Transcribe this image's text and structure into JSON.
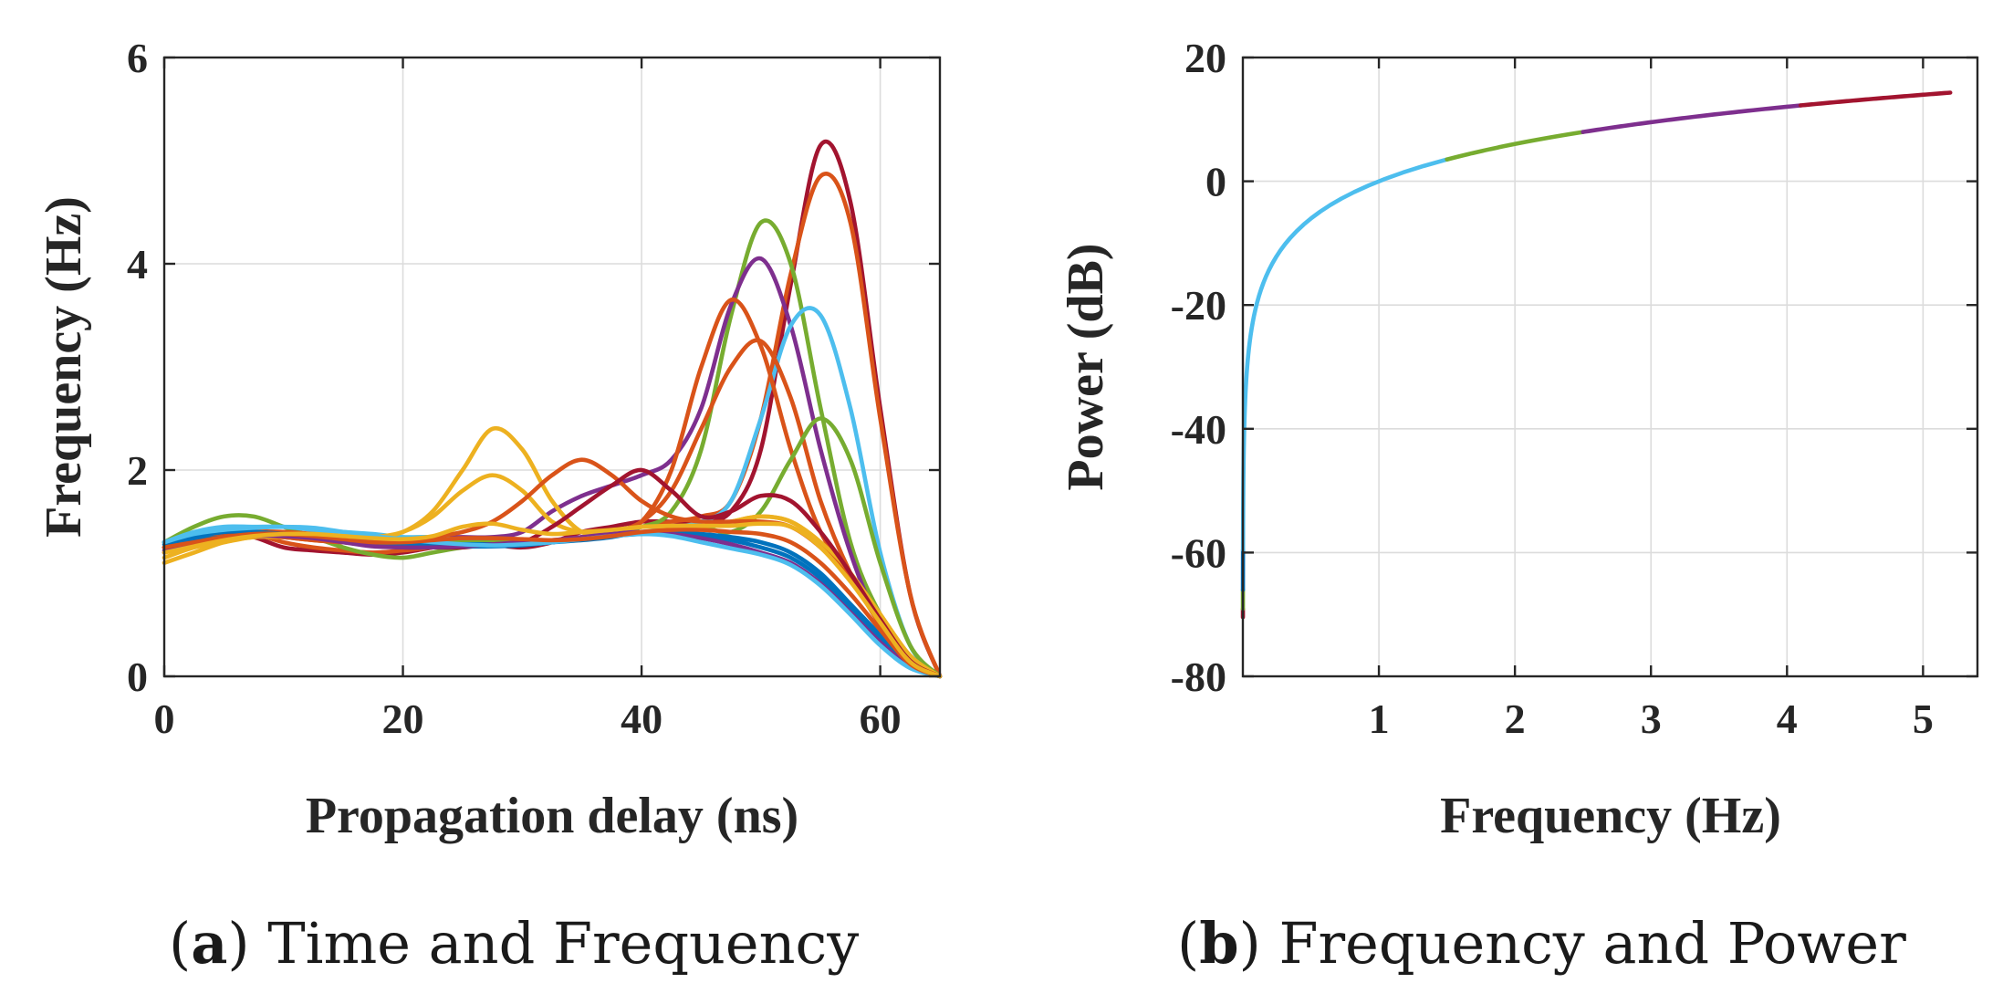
{
  "chart_data": [
    {
      "type": "line",
      "panel": "a",
      "caption_letter": "a",
      "caption_text": " Time and Frequency",
      "xlabel": "Propagation delay (ns)",
      "ylabel": "Frequency (Hz)",
      "xlim": [
        0,
        65
      ],
      "ylim": [
        0,
        6
      ],
      "xticks": [
        0,
        20,
        40,
        60
      ],
      "yticks": [
        0,
        2,
        4,
        6
      ],
      "xtick_labels": [
        "0",
        "20",
        "40",
        "60"
      ],
      "ytick_labels": [
        "0",
        "2",
        "4",
        "6"
      ],
      "grid": true,
      "x": [
        0,
        2.5,
        5,
        7.5,
        10,
        12.5,
        15,
        17.5,
        20,
        22.5,
        25,
        27.5,
        30,
        32.5,
        35,
        37.5,
        40,
        42.5,
        45,
        47.5,
        50,
        52.5,
        55,
        57.5,
        60,
        62.5,
        65
      ],
      "series": [
        {
          "name": "s1",
          "color": "#a2142f",
          "values": [
            1.2,
            1.3,
            1.4,
            1.35,
            1.25,
            1.22,
            1.2,
            1.18,
            1.2,
            1.25,
            1.3,
            1.28,
            1.25,
            1.3,
            1.4,
            1.45,
            1.5,
            1.5,
            1.5,
            1.6,
            2.2,
            3.8,
            5.15,
            4.6,
            2.6,
            0.8,
            0.0
          ]
        },
        {
          "name": "s2",
          "color": "#d95319",
          "values": [
            1.25,
            1.35,
            1.4,
            1.38,
            1.3,
            1.25,
            1.22,
            1.2,
            1.22,
            1.25,
            1.28,
            1.3,
            1.28,
            1.3,
            1.35,
            1.4,
            1.45,
            1.5,
            1.55,
            1.7,
            2.5,
            3.9,
            4.85,
            4.4,
            2.5,
            0.8,
            0.0
          ]
        },
        {
          "name": "s3",
          "color": "#77ac30",
          "values": [
            1.3,
            1.45,
            1.55,
            1.55,
            1.45,
            1.35,
            1.25,
            1.18,
            1.15,
            1.2,
            1.25,
            1.28,
            1.28,
            1.3,
            1.35,
            1.4,
            1.45,
            1.6,
            2.2,
            3.5,
            4.4,
            4.0,
            2.6,
            1.3,
            0.6,
            0.2,
            0.0
          ]
        },
        {
          "name": "s4",
          "color": "#7e2f8e",
          "values": [
            1.2,
            1.3,
            1.35,
            1.4,
            1.38,
            1.35,
            1.3,
            1.28,
            1.3,
            1.35,
            1.35,
            1.35,
            1.4,
            1.6,
            1.75,
            1.85,
            1.95,
            2.1,
            2.6,
            3.6,
            4.05,
            3.4,
            2.2,
            1.2,
            0.5,
            0.15,
            0.0
          ]
        },
        {
          "name": "s5",
          "color": "#4dbeee",
          "values": [
            1.3,
            1.4,
            1.45,
            1.45,
            1.45,
            1.42,
            1.4,
            1.38,
            1.35,
            1.35,
            1.32,
            1.3,
            1.28,
            1.3,
            1.35,
            1.4,
            1.45,
            1.45,
            1.5,
            1.7,
            2.5,
            3.4,
            3.5,
            2.6,
            1.2,
            0.3,
            0.0
          ]
        },
        {
          "name": "s6",
          "color": "#d95319",
          "values": [
            1.25,
            1.3,
            1.35,
            1.4,
            1.4,
            1.38,
            1.35,
            1.32,
            1.3,
            1.3,
            1.3,
            1.3,
            1.3,
            1.3,
            1.35,
            1.4,
            1.5,
            2.0,
            3.0,
            3.65,
            3.2,
            2.2,
            1.4,
            1.0,
            0.6,
            0.2,
            0.0
          ]
        },
        {
          "name": "s7",
          "color": "#d95319",
          "values": [
            1.25,
            1.3,
            1.35,
            1.38,
            1.35,
            1.32,
            1.3,
            1.28,
            1.28,
            1.3,
            1.3,
            1.3,
            1.3,
            1.32,
            1.35,
            1.4,
            1.5,
            1.8,
            2.4,
            3.0,
            3.25,
            2.7,
            1.7,
            1.0,
            0.5,
            0.15,
            0.0
          ]
        },
        {
          "name": "s8",
          "color": "#77ac30",
          "values": [
            1.3,
            1.35,
            1.4,
            1.4,
            1.38,
            1.35,
            1.32,
            1.3,
            1.3,
            1.3,
            1.3,
            1.3,
            1.3,
            1.3,
            1.35,
            1.4,
            1.45,
            1.45,
            1.45,
            1.4,
            1.6,
            2.1,
            2.5,
            2.1,
            1.1,
            0.3,
            0.0
          ]
        },
        {
          "name": "s9",
          "color": "#edb120",
          "values": [
            1.1,
            1.2,
            1.3,
            1.35,
            1.35,
            1.35,
            1.35,
            1.35,
            1.4,
            1.6,
            2.0,
            2.4,
            2.2,
            1.7,
            1.4,
            1.4,
            1.45,
            1.45,
            1.45,
            1.5,
            1.55,
            1.5,
            1.3,
            1.0,
            0.6,
            0.2,
            0.0
          ]
        },
        {
          "name": "s10",
          "color": "#edb120",
          "values": [
            1.15,
            1.25,
            1.3,
            1.35,
            1.35,
            1.35,
            1.35,
            1.35,
            1.4,
            1.55,
            1.8,
            1.95,
            1.8,
            1.5,
            1.4,
            1.4,
            1.45,
            1.45,
            1.45,
            1.5,
            1.55,
            1.5,
            1.3,
            1.0,
            0.6,
            0.2,
            0.0
          ]
        },
        {
          "name": "s11",
          "color": "#d95319",
          "values": [
            1.3,
            1.35,
            1.38,
            1.38,
            1.35,
            1.32,
            1.3,
            1.3,
            1.3,
            1.35,
            1.4,
            1.5,
            1.7,
            1.95,
            2.1,
            1.95,
            1.7,
            1.55,
            1.5,
            1.5,
            1.5,
            1.45,
            1.25,
            0.95,
            0.55,
            0.15,
            0.0
          ]
        },
        {
          "name": "s12",
          "color": "#a2142f",
          "values": [
            1.25,
            1.35,
            1.4,
            1.4,
            1.38,
            1.35,
            1.32,
            1.28,
            1.25,
            1.25,
            1.25,
            1.28,
            1.3,
            1.45,
            1.65,
            1.85,
            2.0,
            1.8,
            1.55,
            1.6,
            1.75,
            1.7,
            1.4,
            1.0,
            0.55,
            0.15,
            0.0
          ]
        },
        {
          "name": "s13",
          "color": "#0072bd",
          "values": [
            1.3,
            1.35,
            1.4,
            1.4,
            1.38,
            1.35,
            1.32,
            1.3,
            1.28,
            1.28,
            1.28,
            1.28,
            1.28,
            1.3,
            1.32,
            1.35,
            1.4,
            1.4,
            1.38,
            1.35,
            1.3,
            1.2,
            1.0,
            0.7,
            0.4,
            0.1,
            0.0
          ]
        },
        {
          "name": "s14",
          "color": "#0072bd",
          "values": [
            1.28,
            1.32,
            1.35,
            1.38,
            1.38,
            1.36,
            1.33,
            1.3,
            1.28,
            1.27,
            1.26,
            1.26,
            1.27,
            1.3,
            1.33,
            1.36,
            1.38,
            1.38,
            1.36,
            1.32,
            1.25,
            1.15,
            0.95,
            0.65,
            0.35,
            0.1,
            0.0
          ]
        },
        {
          "name": "s15",
          "color": "#7e2f8e",
          "values": [
            1.22,
            1.28,
            1.33,
            1.36,
            1.36,
            1.34,
            1.3,
            1.26,
            1.25,
            1.25,
            1.26,
            1.28,
            1.3,
            1.32,
            1.35,
            1.38,
            1.4,
            1.38,
            1.34,
            1.28,
            1.2,
            1.1,
            0.9,
            0.62,
            0.33,
            0.1,
            0.0
          ]
        },
        {
          "name": "s16",
          "color": "#4dbeee",
          "values": [
            1.3,
            1.38,
            1.42,
            1.44,
            1.45,
            1.44,
            1.4,
            1.36,
            1.33,
            1.3,
            1.28,
            1.27,
            1.28,
            1.3,
            1.33,
            1.36,
            1.38,
            1.36,
            1.3,
            1.24,
            1.18,
            1.08,
            0.88,
            0.6,
            0.3,
            0.08,
            0.0
          ]
        },
        {
          "name": "s17",
          "color": "#d95319",
          "values": [
            1.25,
            1.3,
            1.35,
            1.38,
            1.38,
            1.36,
            1.33,
            1.3,
            1.3,
            1.32,
            1.34,
            1.34,
            1.33,
            1.32,
            1.33,
            1.36,
            1.4,
            1.42,
            1.42,
            1.4,
            1.38,
            1.3,
            1.1,
            0.8,
            0.45,
            0.12,
            0.0
          ]
        },
        {
          "name": "s18",
          "color": "#edb120",
          "values": [
            1.2,
            1.26,
            1.32,
            1.36,
            1.38,
            1.38,
            1.36,
            1.34,
            1.33,
            1.36,
            1.45,
            1.48,
            1.42,
            1.38,
            1.4,
            1.42,
            1.45,
            1.46,
            1.46,
            1.46,
            1.48,
            1.45,
            1.25,
            0.92,
            0.52,
            0.14,
            0.0
          ]
        }
      ]
    },
    {
      "type": "line",
      "panel": "b",
      "caption_letter": "b",
      "caption_text": " Frequency and Power",
      "xlabel": "Frequency (Hz)",
      "ylabel": "Power (dB)",
      "xlim": [
        0,
        5.4
      ],
      "ylim": [
        -80,
        20
      ],
      "xticks": [
        1,
        2,
        3,
        4,
        5
      ],
      "yticks": [
        -80,
        -60,
        -40,
        -20,
        0,
        20
      ],
      "xtick_labels": [
        "1",
        "2",
        "3",
        "4",
        "5"
      ],
      "ytick_labels": [
        "-80",
        "-60",
        "-40",
        "-20",
        "0",
        "20"
      ],
      "grid": true,
      "formula": "P = 20*log10(f)",
      "x_start": 0.0003,
      "x_end": 5.2,
      "segments": [
        {
          "from": 0.0003,
          "to": 0.00035,
          "color": "#a2142f"
        },
        {
          "from": 0.00035,
          "to": 0.0005,
          "color": "#77ac30"
        },
        {
          "from": 0.0005,
          "to": 0.00105,
          "color": "#0072bd"
        },
        {
          "from": 0.00105,
          "to": 1.5,
          "color": "#4dbeee"
        },
        {
          "from": 1.5,
          "to": 2.5,
          "color": "#77ac30"
        },
        {
          "from": 2.5,
          "to": 4.1,
          "color": "#7e2f8e"
        },
        {
          "from": 4.1,
          "to": 5.2,
          "color": "#a2142f"
        }
      ]
    }
  ]
}
